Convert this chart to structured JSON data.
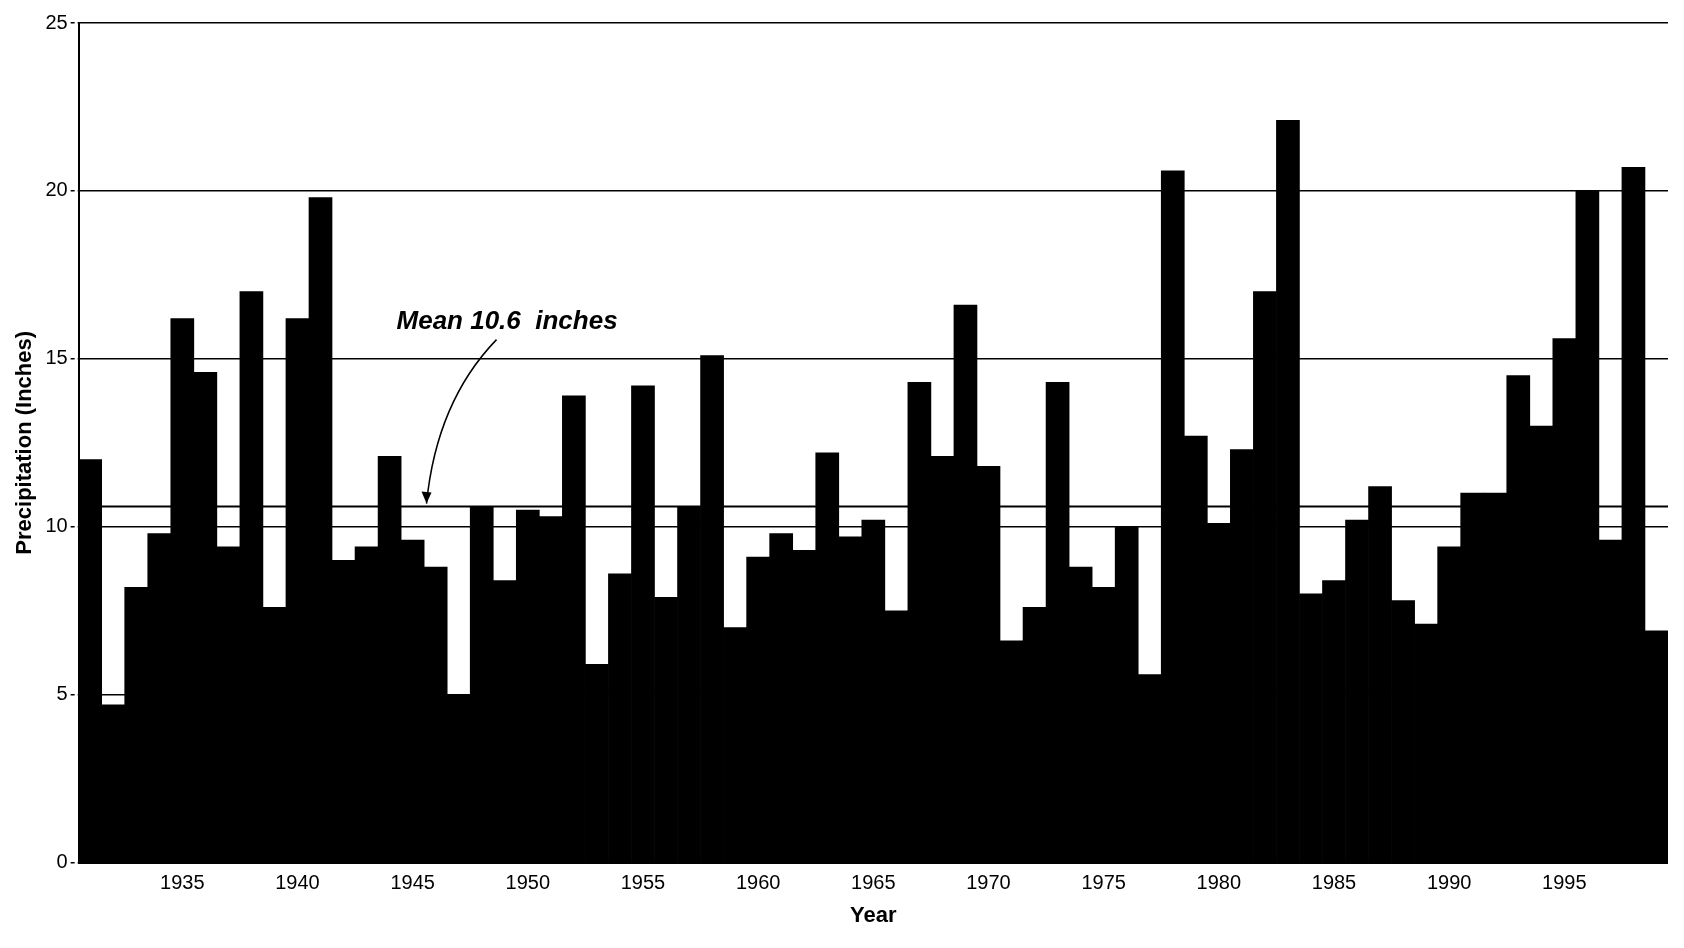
{
  "chart_data": {
    "type": "bar",
    "xlabel": "Year",
    "ylabel": "Precipitation (Inches)",
    "x": [
      1931,
      1932,
      1933,
      1934,
      1935,
      1936,
      1937,
      1938,
      1939,
      1940,
      1941,
      1942,
      1943,
      1944,
      1945,
      1946,
      1947,
      1948,
      1949,
      1950,
      1951,
      1952,
      1953,
      1954,
      1955,
      1956,
      1957,
      1958,
      1959,
      1960,
      1961,
      1962,
      1963,
      1964,
      1965,
      1966,
      1967,
      1968,
      1969,
      1970,
      1971,
      1972,
      1973,
      1974,
      1975,
      1976,
      1977,
      1978,
      1979,
      1980,
      1981,
      1982,
      1983,
      1984,
      1985,
      1986,
      1987,
      1988,
      1989,
      1990,
      1991,
      1992,
      1993,
      1994,
      1995,
      1996,
      1997,
      1998,
      1999
    ],
    "values": [
      12.0,
      4.7,
      8.2,
      9.8,
      16.2,
      14.6,
      9.4,
      17.0,
      7.6,
      16.2,
      19.8,
      9.0,
      9.4,
      12.1,
      9.6,
      8.8,
      5.0,
      10.6,
      8.4,
      10.5,
      10.3,
      13.9,
      5.9,
      8.6,
      14.2,
      7.9,
      10.6,
      15.1,
      7.0,
      9.1,
      9.8,
      9.3,
      12.2,
      9.7,
      10.2,
      7.5,
      14.3,
      12.1,
      16.6,
      11.8,
      6.6,
      7.6,
      14.3,
      8.8,
      8.2,
      10.0,
      5.6,
      20.6,
      12.7,
      10.1,
      12.3,
      17.0,
      22.1,
      8.0,
      8.4,
      10.2,
      11.2,
      7.8,
      7.1,
      9.4,
      11.0,
      11.0,
      14.5,
      13.0,
      15.6,
      20.0,
      9.6,
      20.7,
      6.9
    ],
    "color": "#000000",
    "xlim": [
      1930.5,
      1999.5
    ],
    "xticks": [
      1935,
      1940,
      1945,
      1950,
      1955,
      1960,
      1965,
      1970,
      1975,
      1980,
      1985,
      1990,
      1995
    ],
    "ylim": [
      0,
      25
    ],
    "yticks": [
      0,
      5,
      10,
      15,
      20,
      25
    ],
    "grid": "y",
    "line_style": "dashed",
    "ref_lines": [
      {
        "axis": "y",
        "value": 10.6,
        "label": "Mean 10.6  inches",
        "color": "#000000"
      }
    ]
  }
}
